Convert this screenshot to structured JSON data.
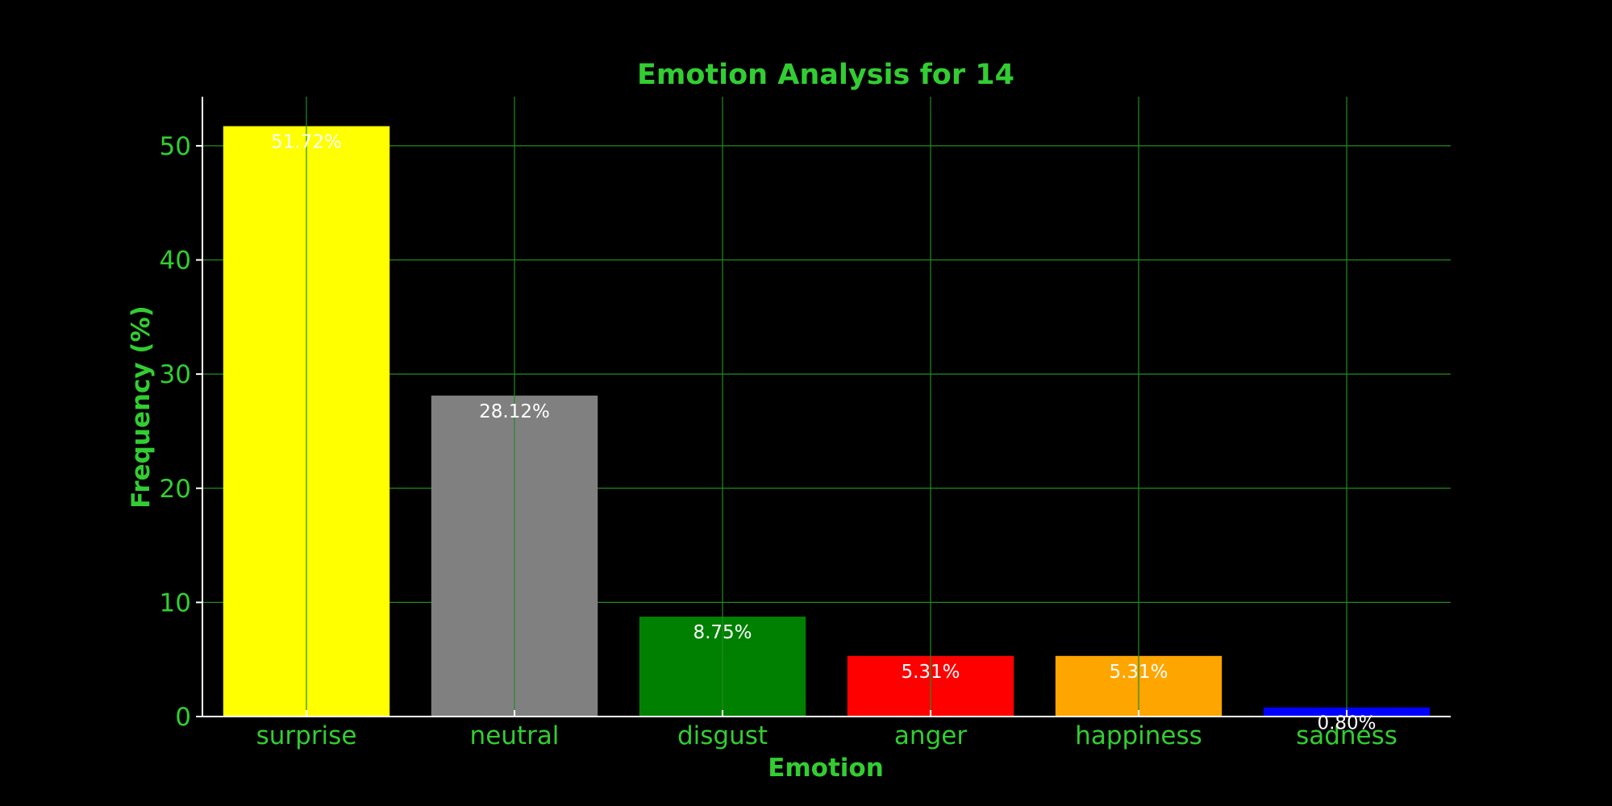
{
  "chart_data": {
    "type": "bar",
    "title": "Emotion Analysis for 14",
    "xlabel": "Emotion",
    "ylabel": "Frequency (%)",
    "categories": [
      "surprise",
      "neutral",
      "disgust",
      "anger",
      "happiness",
      "sadness"
    ],
    "values": [
      51.72,
      28.12,
      8.75,
      5.31,
      5.31,
      0.8
    ],
    "value_labels": [
      "51.72%",
      "28.12%",
      "8.75%",
      "5.31%",
      "5.31%",
      "0.80%"
    ],
    "bar_colors": [
      "#ffff00",
      "#808080",
      "#008000",
      "#ff0000",
      "#ffa500",
      "#0000ff"
    ],
    "yticks": [
      0,
      10,
      20,
      30,
      40,
      50
    ],
    "ylim": [
      0,
      54.3
    ],
    "grid": true,
    "legend": "none",
    "colors": {
      "background": "#000000",
      "text": "#32cd32",
      "grid": "#228b22",
      "axis": "#ffffff",
      "value_label": "#ffffff"
    }
  }
}
